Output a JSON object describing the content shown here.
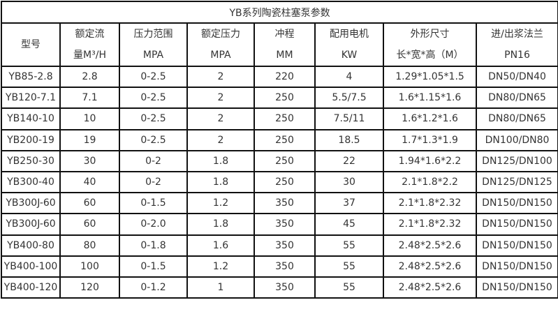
{
  "title": "YB系列陶瓷柱塞泵参数",
  "headers": [
    {
      "line1": "型号",
      "line2": ""
    },
    {
      "line1": "额定流",
      "line2": "量M³/H"
    },
    {
      "line1": "压力范围",
      "line2": "MPA"
    },
    {
      "line1": "额定压力",
      "line2": "MPA"
    },
    {
      "line1": "冲程",
      "line2": "MM"
    },
    {
      "line1": "配用电机",
      "line2": "KW"
    },
    {
      "line1": "外形尺寸",
      "line2": "长*宽*高（M）"
    },
    {
      "line1": "进/出浆法兰",
      "line2": "PN16"
    }
  ],
  "rows": [
    [
      "YB85-2.8",
      "2.8",
      "0-2.5",
      "2",
      "220",
      "4",
      "1.29*1.05*1.5",
      "DN50/DN40"
    ],
    [
      "YB120-7.1",
      "7.1",
      "0-2.5",
      "2",
      "250",
      "5.5/7.5",
      "1.6*1.15*1.6",
      "DN80/DN65"
    ],
    [
      "YB140-10",
      "10",
      "0-2.5",
      "2",
      "250",
      "7.5/11",
      "1.6*1.2*1.6",
      "DN80/DN65"
    ],
    [
      "YB200-19",
      "19",
      "0-2.5",
      "2",
      "250",
      "18.5",
      "1.7*1.3*1.9",
      "DN100/DN80"
    ],
    [
      "YB250-30",
      "30",
      "0-2",
      "1.8",
      "250",
      "22",
      "1.94*1.6*2.2",
      "DN125/DN100"
    ],
    [
      "YB300-40",
      "40",
      "0-2",
      "1.8",
      "250",
      "30",
      "2.1*1.8*2.2",
      "DN125/DN125"
    ],
    [
      "YB300J-60",
      "60",
      "0-1.5",
      "1.2",
      "350",
      "37",
      "2.1*1.8*2.32",
      "DN150/DN150"
    ],
    [
      "YB300J-60",
      "60",
      "0-2.0",
      "1.8",
      "350",
      "45",
      "2.1*1.8*2.32",
      "DN150/DN150"
    ],
    [
      "YB400-80",
      "80",
      "0-1.8",
      "1.6",
      "350",
      "55",
      "2.48*2.5*2.6",
      "DN150/DN150"
    ],
    [
      "YB400-100",
      "100",
      "0-1.5",
      "1.2",
      "350",
      "55",
      "2.48*2.5*2.6",
      "DN150/DN150"
    ],
    [
      "YB400-120",
      "120",
      "0-1.2",
      "1",
      "350",
      "55",
      "2.48*2.5*2.6",
      "DN150/DN150"
    ]
  ]
}
